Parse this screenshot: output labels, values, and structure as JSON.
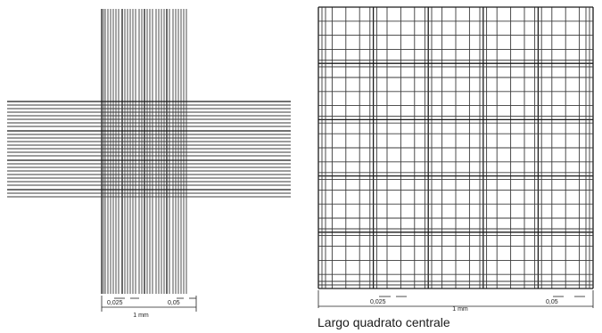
{
  "left_figure": {
    "label_fine": "0,025",
    "label_coarse": "0,05",
    "label_width": "1 mm"
  },
  "right_figure": {
    "label_fine": "0,025",
    "label_coarse": "0,05",
    "label_width": "1 mm",
    "caption": "Largo quadrato centrale"
  }
}
